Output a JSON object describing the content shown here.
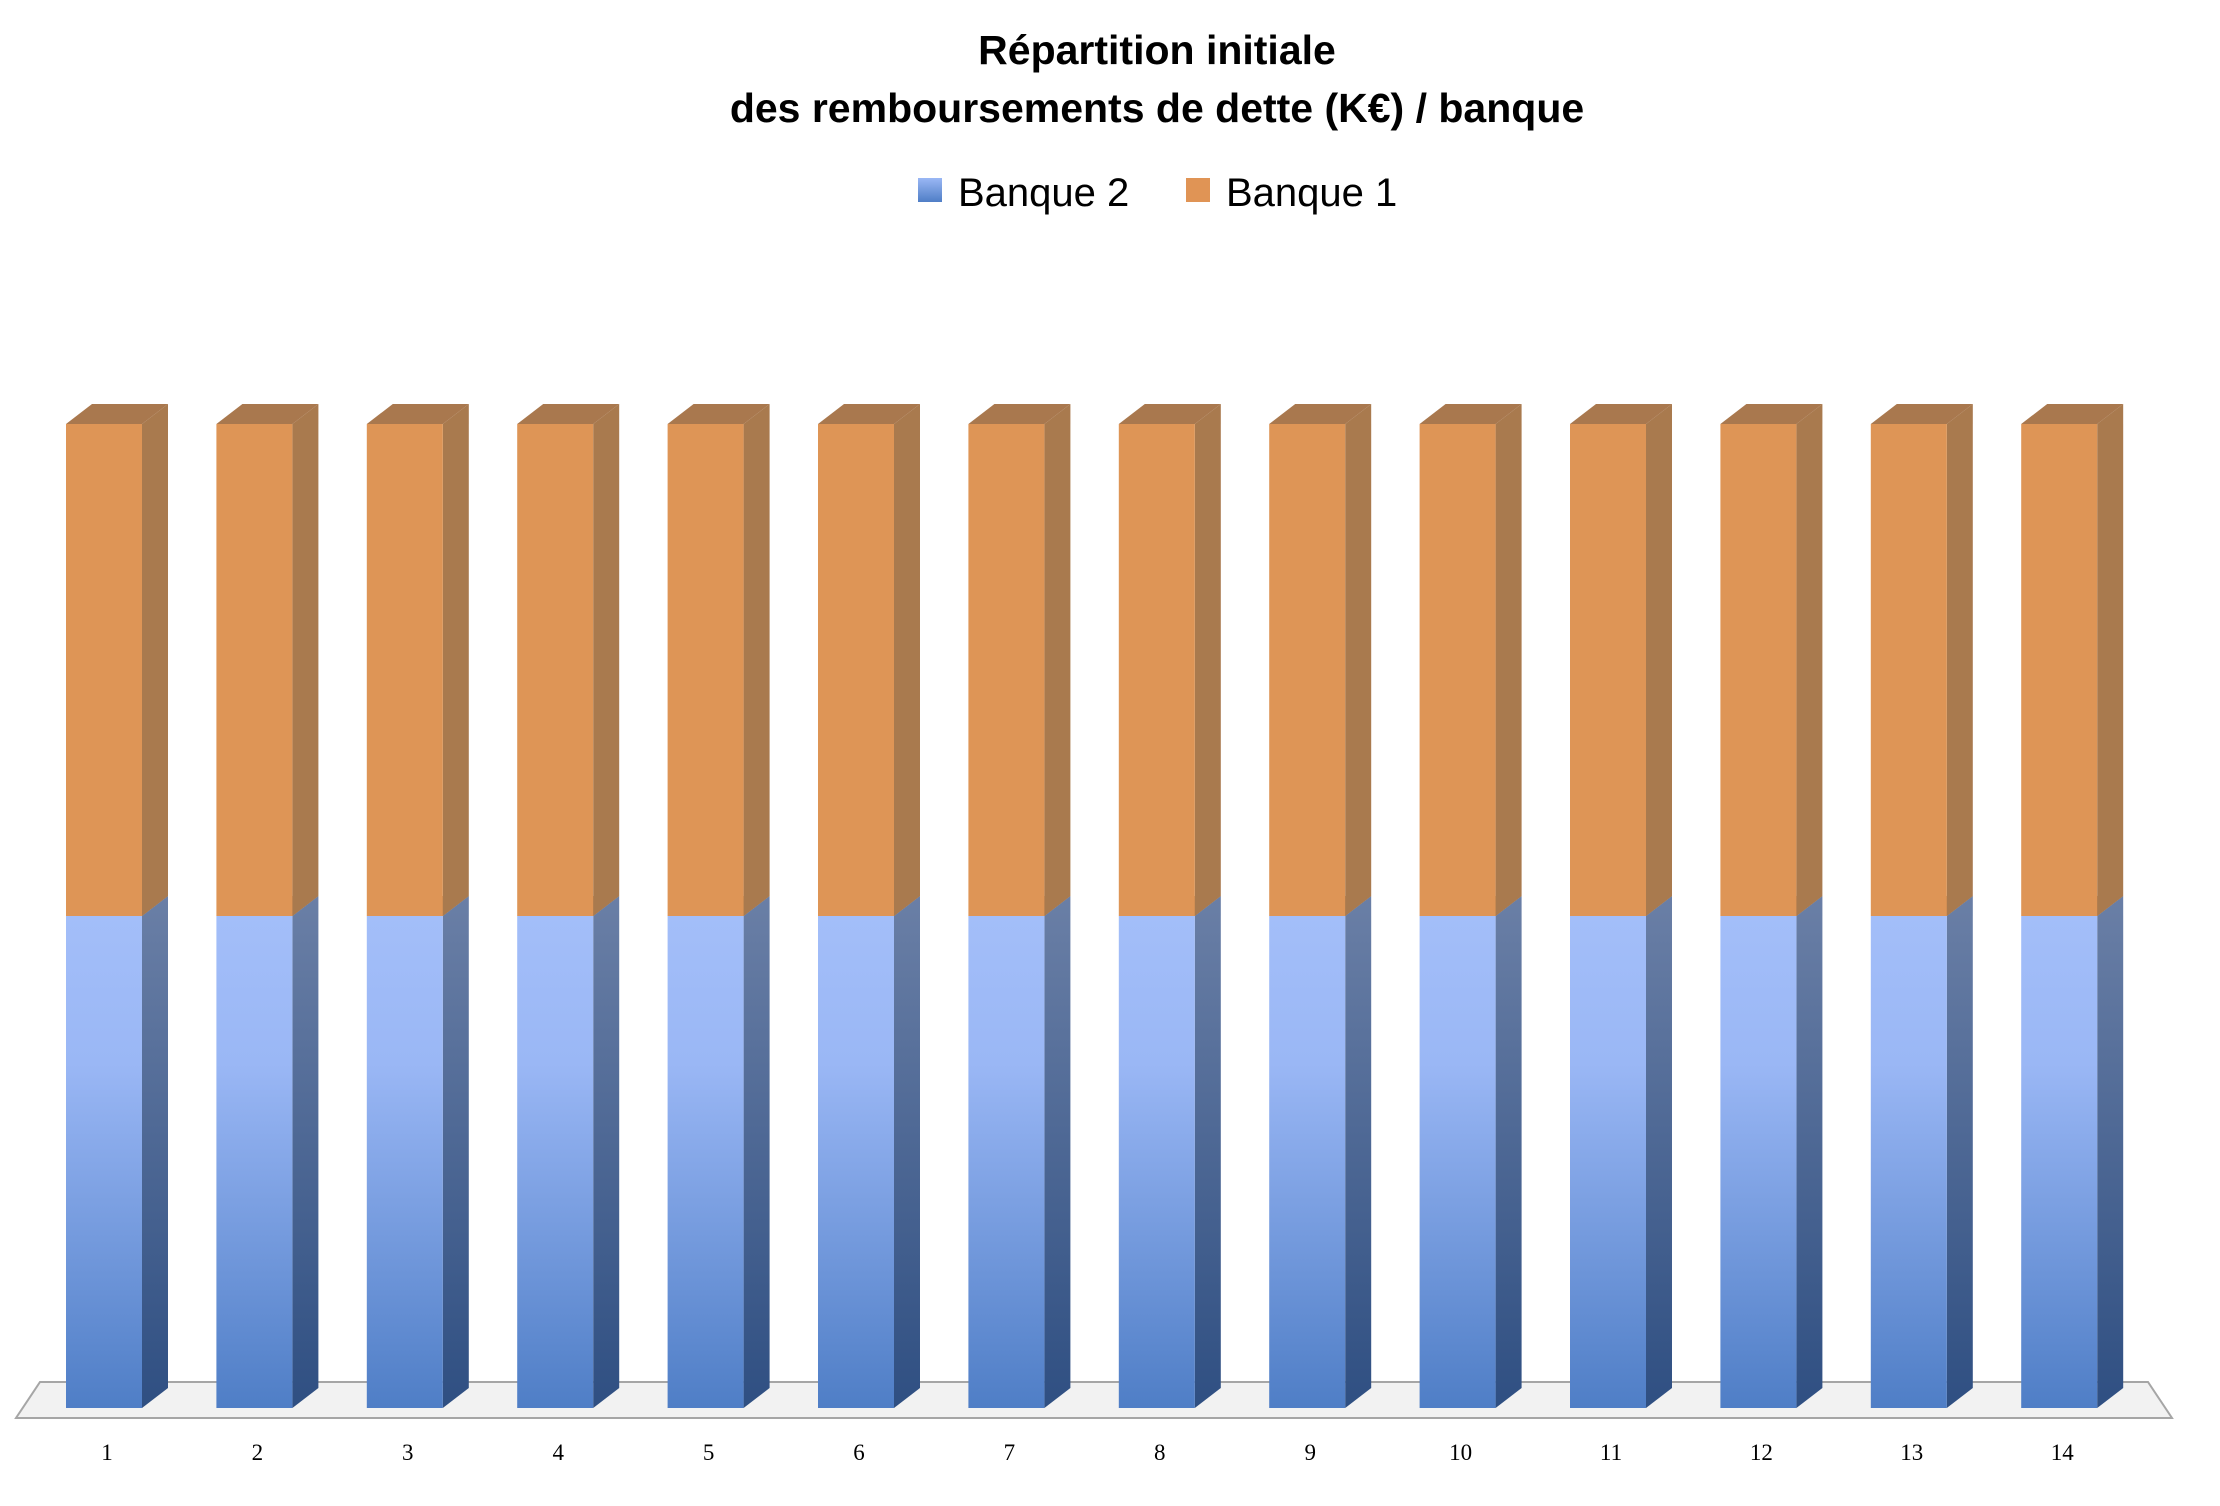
{
  "chart_data": {
    "type": "bar",
    "stacked": true,
    "three_d": true,
    "title": [
      "Répartition initiale",
      "des remboursements de dette (K€) / banque"
    ],
    "xlabel": "",
    "ylabel": "",
    "categories": [
      "1",
      "2",
      "3",
      "4",
      "5",
      "6",
      "7",
      "8",
      "9",
      "10",
      "11",
      "12",
      "13",
      "14"
    ],
    "series": [
      {
        "name": "Banque 2",
        "values": [
          50,
          50,
          50,
          50,
          50,
          50,
          50,
          50,
          50,
          50,
          50,
          50,
          50,
          50
        ],
        "color": "#4f81bd"
      },
      {
        "name": "Banque 1",
        "values": [
          50,
          50,
          50,
          50,
          50,
          50,
          50,
          50,
          50,
          50,
          50,
          50,
          50,
          50
        ],
        "color": "#f79646"
      }
    ],
    "legend_position": "top",
    "grid": false,
    "y_axis_visible": false
  }
}
